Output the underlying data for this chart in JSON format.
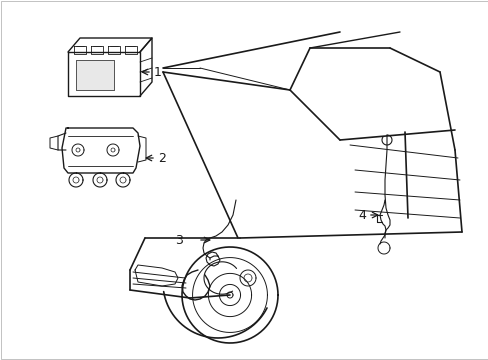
{
  "background_color": "#ffffff",
  "line_color": "#1a1a1a",
  "light_line_color": "#444444",
  "figsize": [
    4.89,
    3.6
  ],
  "dpi": 100,
  "labels": [
    "1",
    "2",
    "3",
    "4"
  ],
  "label_fontsize": 9,
  "border_color": "#cccccc"
}
